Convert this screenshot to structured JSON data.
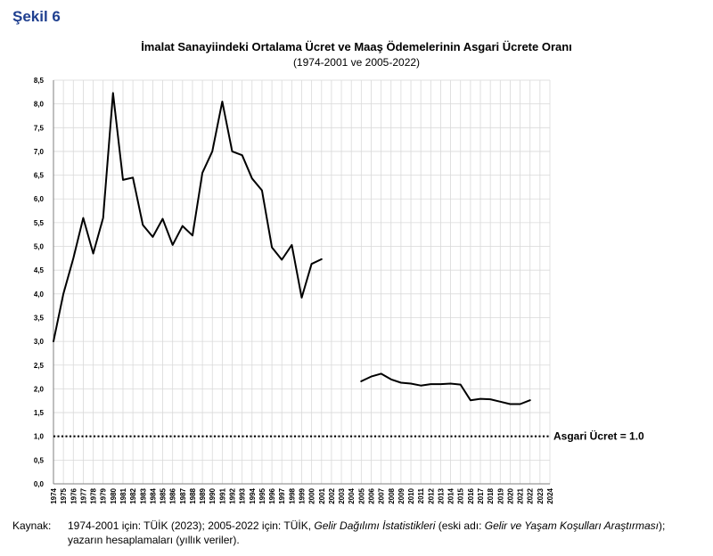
{
  "figure_label": "Şekil 6",
  "chart_data": {
    "type": "line",
    "title": "İmalat Sanayiindeki Ortalama Ücret ve Maaş Ödemelerinin Asgari Ücrete Oranı",
    "subtitle": "(1974-2001 ve 2005-2022)",
    "xlabel": "",
    "ylabel": "",
    "ylim": [
      0,
      8.5
    ],
    "ytick_step": 0.5,
    "y_tick_labels": [
      "0,0",
      "0,5",
      "1,0",
      "1,5",
      "2,0",
      "2,5",
      "3,0",
      "3,5",
      "4,0",
      "4,5",
      "5,0",
      "5,5",
      "6,0",
      "6,5",
      "7,0",
      "7,5",
      "8,0",
      "8,5"
    ],
    "x_tick_labels": [
      "1974",
      "1975",
      "1976",
      "1977",
      "1978",
      "1979",
      "1980",
      "1981",
      "1982",
      "1983",
      "1984",
      "1985",
      "1986",
      "1987",
      "1988",
      "1989",
      "1990",
      "1991",
      "1992",
      "1993",
      "1994",
      "1995",
      "1996",
      "1997",
      "1998",
      "1999",
      "2000",
      "2001",
      "2002",
      "2003",
      "2004",
      "2005",
      "2006",
      "2007",
      "2008",
      "2009",
      "2010",
      "2011",
      "2012",
      "2013",
      "2014",
      "2015",
      "2016",
      "2017",
      "2018",
      "2019",
      "2020",
      "2021",
      "2022",
      "2023",
      "2024"
    ],
    "grid": true,
    "series": [
      {
        "name": "1974-2001",
        "x": [
          1974,
          1975,
          1976,
          1977,
          1978,
          1979,
          1980,
          1981,
          1982,
          1983,
          1984,
          1985,
          1986,
          1987,
          1988,
          1989,
          1990,
          1991,
          1992,
          1993,
          1994,
          1995,
          1996,
          1997,
          1998,
          1999,
          2000,
          2001
        ],
        "values": [
          3.0,
          4.0,
          4.75,
          5.6,
          4.85,
          5.6,
          8.23,
          6.4,
          6.45,
          5.45,
          5.2,
          5.58,
          5.03,
          5.43,
          5.23,
          6.55,
          7.0,
          8.05,
          7.0,
          6.92,
          6.43,
          6.18,
          4.98,
          4.72,
          5.03,
          3.92,
          4.63,
          4.73
        ]
      },
      {
        "name": "2005-2022",
        "x": [
          2005,
          2006,
          2007,
          2008,
          2009,
          2010,
          2011,
          2012,
          2013,
          2014,
          2015,
          2016,
          2017,
          2018,
          2019,
          2020,
          2021,
          2022
        ],
        "values": [
          2.16,
          2.26,
          2.32,
          2.2,
          2.13,
          2.11,
          2.07,
          2.1,
          2.1,
          2.11,
          2.09,
          1.76,
          1.79,
          1.78,
          1.73,
          1.68,
          1.68,
          1.76
        ]
      }
    ],
    "reference_line": {
      "value": 1.0,
      "style": "dotted",
      "label": "Asgari Ücret = 1.0"
    }
  },
  "source": {
    "label": "Kaynak:",
    "text_part1": "1974-2001 için: TÜİK (2023); 2005-2022 için: TÜİK, ",
    "italic_part1": "Gelir Dağılımı İstatistikleri",
    "text_part2": " (eski adı: ",
    "italic_part2": "Gelir ve Yaşam Koşulları Araştırması",
    "text_part3": ");",
    "line2": "yazarın hesaplamaları (yıllık veriler)."
  }
}
